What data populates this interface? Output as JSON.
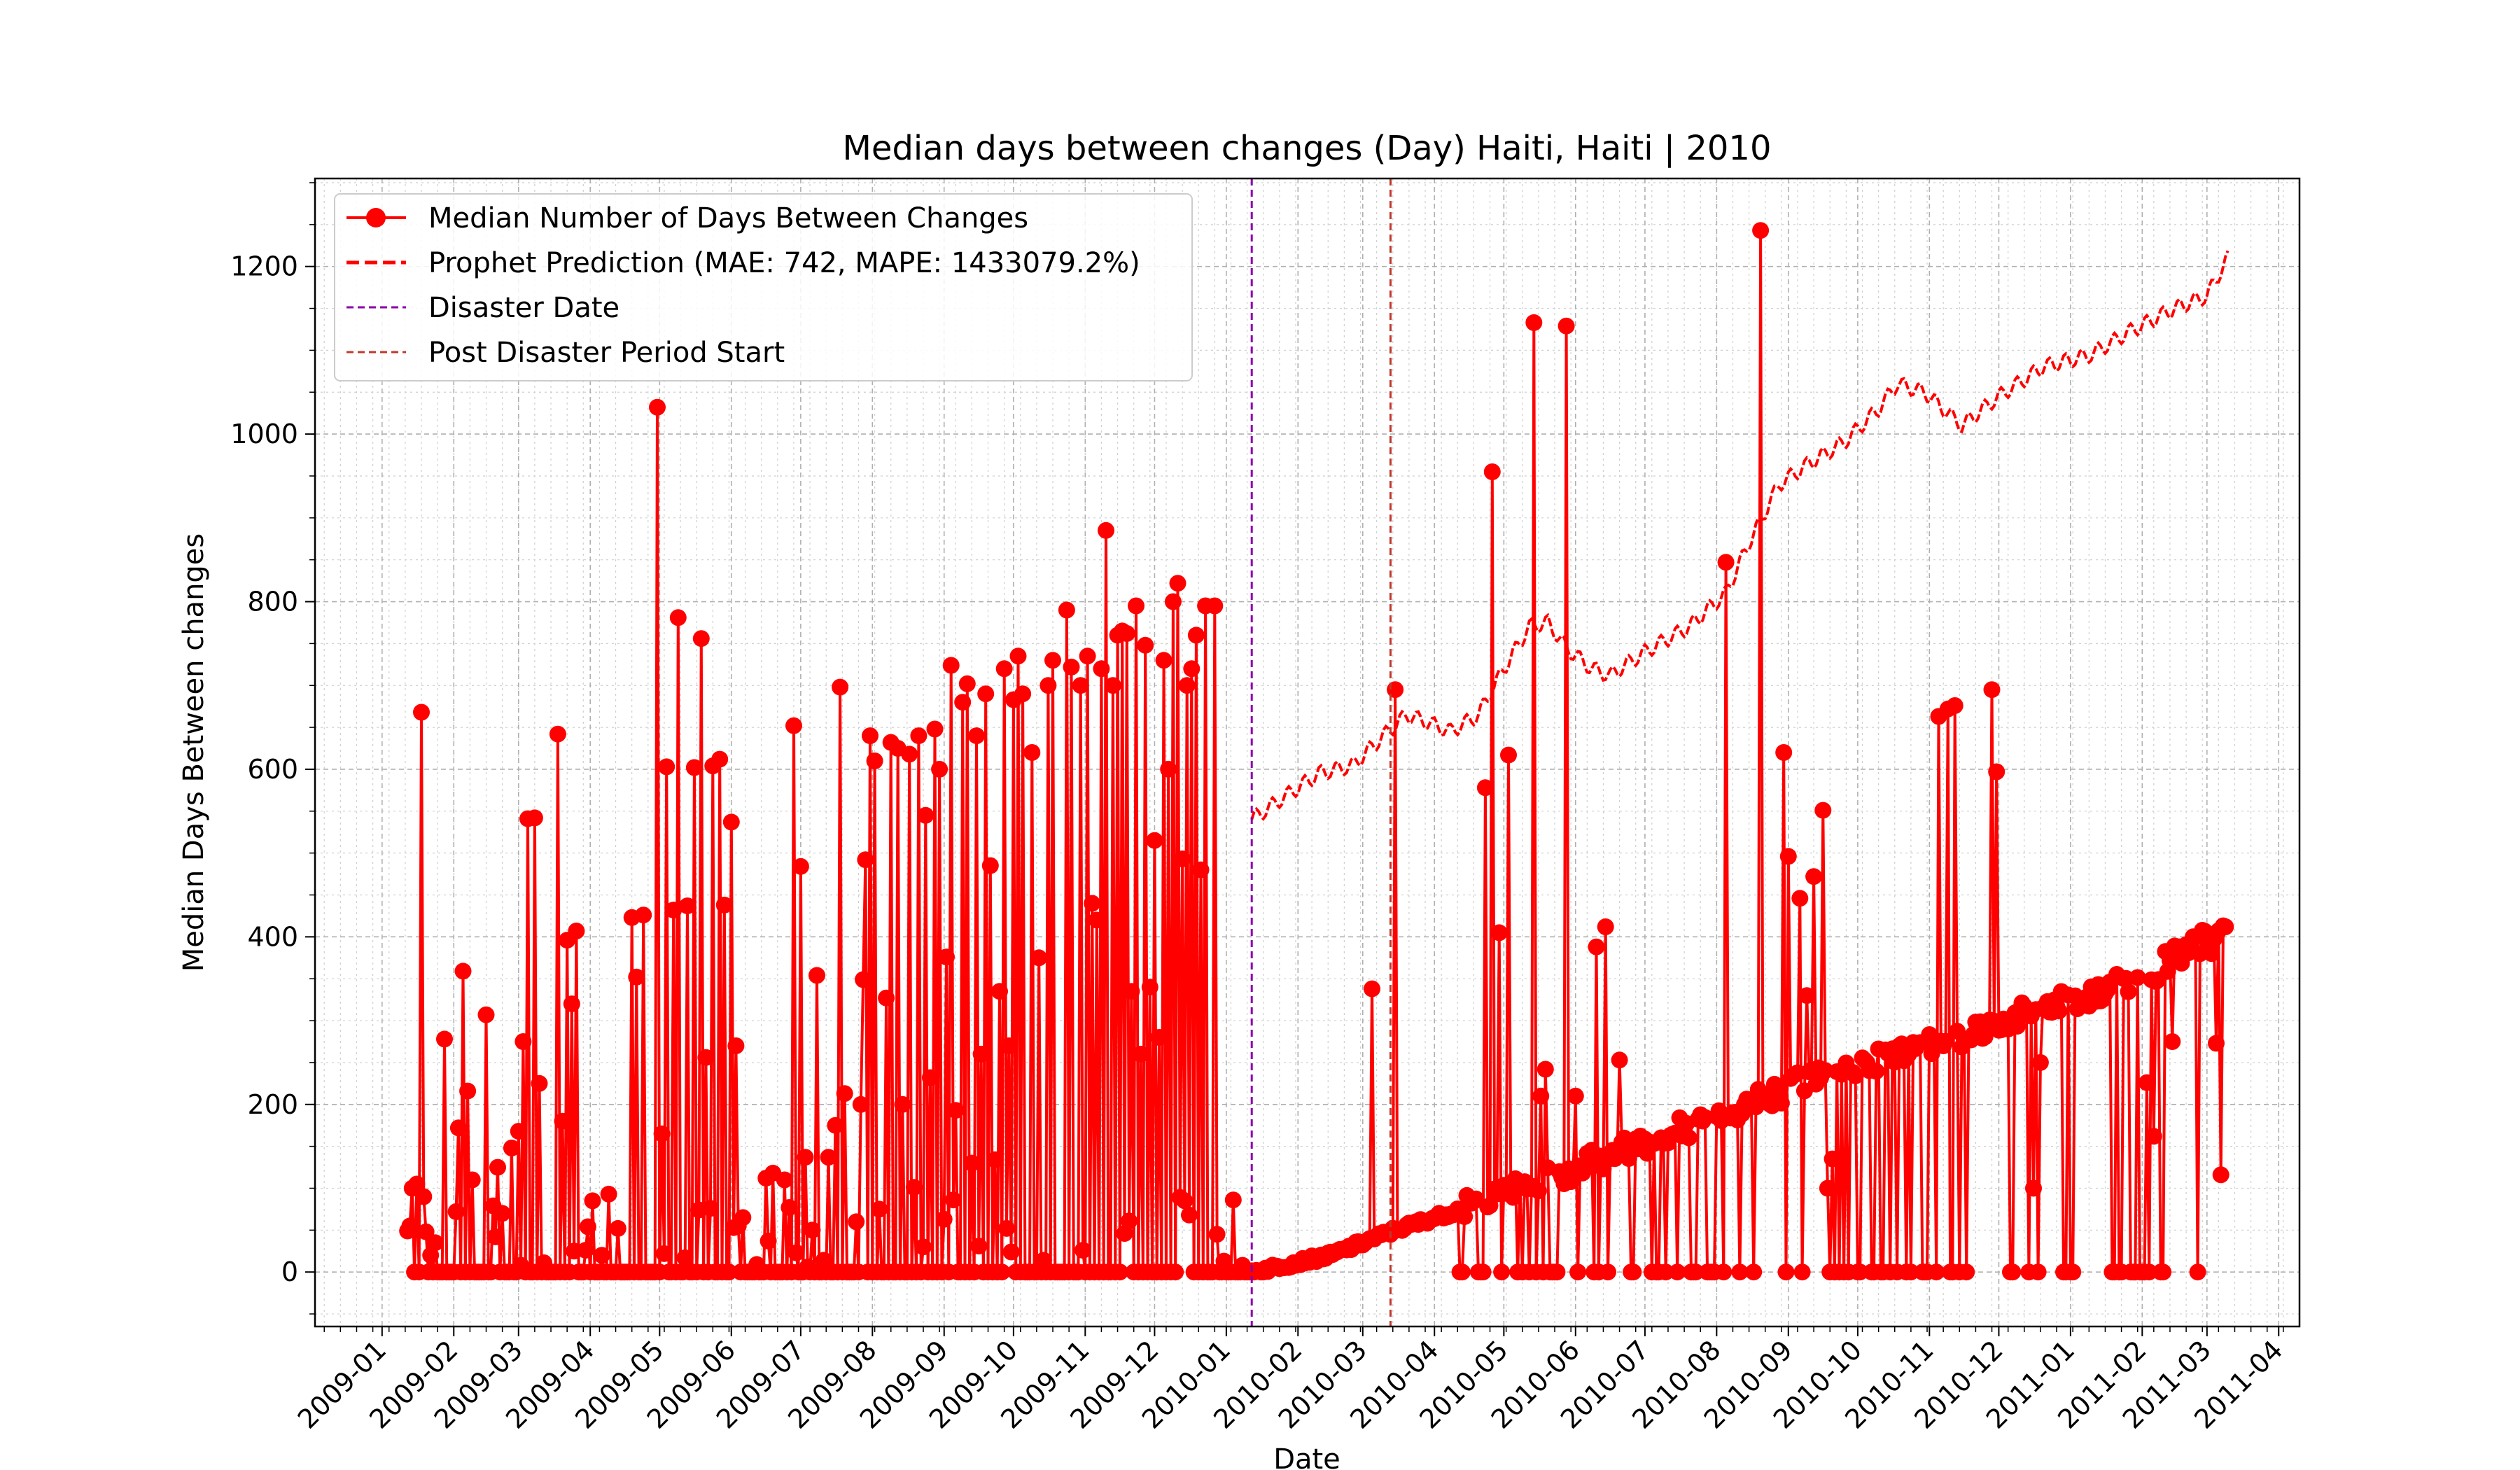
{
  "chart_data": {
    "type": "line",
    "title": "Median days between changes (Day) Haiti, Haiti | 2010",
    "xlabel": "Date",
    "ylabel": "Median Days Between changes",
    "xlim": [
      "2008-12-03",
      "2011-04-10"
    ],
    "ylim": [
      -65,
      1305
    ],
    "x_ticks": [
      "2009-01",
      "2009-02",
      "2009-03",
      "2009-04",
      "2009-05",
      "2009-06",
      "2009-07",
      "2009-08",
      "2009-09",
      "2009-10",
      "2009-11",
      "2009-12",
      "2010-01",
      "2010-02",
      "2010-03",
      "2010-04",
      "2010-05",
      "2010-06",
      "2010-07",
      "2010-08",
      "2010-09",
      "2010-10",
      "2010-11",
      "2010-12",
      "2011-01",
      "2011-02",
      "2011-03",
      "2011-04"
    ],
    "y_ticks": [
      0,
      200,
      400,
      600,
      800,
      1000,
      1200
    ],
    "grid": true,
    "legend_position": "top-left",
    "colors": {
      "observed": "#ff0000",
      "prediction": "#ff0000",
      "disaster": "#8b00a8",
      "post_disaster": "#c0392b"
    },
    "vlines": [
      {
        "name": "Disaster Date",
        "date": "2010-01-12"
      },
      {
        "name": "Post Disaster Period Start",
        "date": "2010-03-13"
      }
    ],
    "series": [
      {
        "name": "Median Number of Days Between Changes",
        "style": "solid-with-markers",
        "peaks": [
          [
            "2009-01-13",
            55
          ],
          [
            "2009-01-14",
            100
          ],
          [
            "2009-01-16",
            105
          ],
          [
            "2009-01-18",
            668
          ],
          [
            "2009-01-20",
            48
          ],
          [
            "2009-01-22",
            20
          ],
          [
            "2009-01-28",
            278
          ],
          [
            "2009-02-03",
            172
          ],
          [
            "2009-02-05",
            359
          ],
          [
            "2009-02-07",
            216
          ],
          [
            "2009-02-09",
            110
          ],
          [
            "2009-02-15",
            307
          ],
          [
            "2009-02-20",
            125
          ],
          [
            "2009-02-22",
            70
          ],
          [
            "2009-02-26",
            148
          ],
          [
            "2009-03-01",
            168
          ],
          [
            "2009-03-03",
            275
          ],
          [
            "2009-03-05",
            541
          ],
          [
            "2009-03-08",
            542
          ],
          [
            "2009-03-10",
            225
          ],
          [
            "2009-03-18",
            642
          ],
          [
            "2009-03-20",
            180
          ],
          [
            "2009-03-22",
            396
          ],
          [
            "2009-03-24",
            320
          ],
          [
            "2009-03-26",
            407
          ],
          [
            "2009-04-02",
            85
          ],
          [
            "2009-04-09",
            93
          ],
          [
            "2009-04-19",
            423
          ],
          [
            "2009-04-21",
            352
          ],
          [
            "2009-04-24",
            426
          ],
          [
            "2009-04-30",
            1032
          ],
          [
            "2009-05-02",
            165
          ],
          [
            "2009-05-04",
            603
          ],
          [
            "2009-05-07",
            432
          ],
          [
            "2009-05-09",
            781
          ],
          [
            "2009-05-13",
            437
          ],
          [
            "2009-05-16",
            602
          ],
          [
            "2009-05-19",
            756
          ],
          [
            "2009-05-21",
            256
          ],
          [
            "2009-05-24",
            604
          ],
          [
            "2009-05-27",
            612
          ],
          [
            "2009-05-29",
            438
          ],
          [
            "2009-06-01",
            537
          ],
          [
            "2009-06-03",
            270
          ],
          [
            "2009-06-06",
            65
          ],
          [
            "2009-06-16",
            112
          ],
          [
            "2009-06-19",
            118
          ],
          [
            "2009-06-24",
            110
          ],
          [
            "2009-06-28",
            652
          ],
          [
            "2009-07-01",
            484
          ],
          [
            "2009-07-03",
            137
          ],
          [
            "2009-07-06",
            50
          ],
          [
            "2009-07-08",
            354
          ],
          [
            "2009-07-13",
            137
          ],
          [
            "2009-07-16",
            175
          ],
          [
            "2009-07-18",
            698
          ],
          [
            "2009-07-20",
            213
          ],
          [
            "2009-07-25",
            60
          ],
          [
            "2009-07-27",
            200
          ],
          [
            "2009-07-28",
            349
          ],
          [
            "2009-07-29",
            492
          ],
          [
            "2009-07-31",
            640
          ],
          [
            "2009-08-02",
            610
          ],
          [
            "2009-08-04",
            75
          ],
          [
            "2009-08-07",
            327
          ],
          [
            "2009-08-09",
            632
          ],
          [
            "2009-08-12",
            625
          ],
          [
            "2009-08-14",
            200
          ],
          [
            "2009-08-17",
            618
          ],
          [
            "2009-08-19",
            101
          ],
          [
            "2009-08-21",
            640
          ],
          [
            "2009-08-23",
            30
          ],
          [
            "2009-08-24",
            545
          ],
          [
            "2009-08-26",
            232
          ],
          [
            "2009-08-28",
            648
          ],
          [
            "2009-08-30",
            600
          ],
          [
            "2009-09-02",
            376
          ],
          [
            "2009-09-04",
            724
          ],
          [
            "2009-09-06",
            193
          ],
          [
            "2009-09-09",
            680
          ],
          [
            "2009-09-11",
            702
          ],
          [
            "2009-09-13",
            130
          ],
          [
            "2009-09-15",
            640
          ],
          [
            "2009-09-17",
            260
          ],
          [
            "2009-09-19",
            690
          ],
          [
            "2009-09-21",
            485
          ],
          [
            "2009-09-23",
            134
          ],
          [
            "2009-09-25",
            335
          ],
          [
            "2009-09-27",
            720
          ],
          [
            "2009-09-29",
            270
          ],
          [
            "2009-10-01",
            683
          ],
          [
            "2009-10-03",
            735
          ],
          [
            "2009-10-05",
            690
          ],
          [
            "2009-10-09",
            620
          ],
          [
            "2009-10-12",
            375
          ],
          [
            "2009-10-16",
            700
          ],
          [
            "2009-10-18",
            730
          ],
          [
            "2009-10-24",
            790
          ],
          [
            "2009-10-26",
            722
          ],
          [
            "2009-10-30",
            700
          ],
          [
            "2009-11-02",
            735
          ],
          [
            "2009-11-04",
            440
          ],
          [
            "2009-11-06",
            420
          ],
          [
            "2009-11-08",
            720
          ],
          [
            "2009-11-10",
            885
          ],
          [
            "2009-11-13",
            700
          ],
          [
            "2009-11-15",
            760
          ],
          [
            "2009-11-17",
            765
          ],
          [
            "2009-11-19",
            762
          ],
          [
            "2009-11-21",
            335
          ],
          [
            "2009-11-23",
            795
          ],
          [
            "2009-11-25",
            260
          ],
          [
            "2009-11-27",
            748
          ],
          [
            "2009-11-29",
            340
          ],
          [
            "2009-12-01",
            515
          ],
          [
            "2009-12-03",
            280
          ],
          [
            "2009-12-05",
            730
          ],
          [
            "2009-12-07",
            600
          ],
          [
            "2009-12-09",
            800
          ],
          [
            "2009-12-11",
            822
          ],
          [
            "2009-12-13",
            493
          ],
          [
            "2009-12-15",
            700
          ],
          [
            "2009-12-17",
            720
          ],
          [
            "2009-12-19",
            760
          ],
          [
            "2009-12-21",
            480
          ],
          [
            "2009-12-23",
            795
          ],
          [
            "2009-12-27",
            795
          ],
          [
            "2010-03-05",
            338
          ],
          [
            "2010-03-15",
            695
          ],
          [
            "2010-04-23",
            578
          ],
          [
            "2010-04-26",
            955
          ],
          [
            "2010-04-29",
            405
          ],
          [
            "2010-05-03",
            617
          ],
          [
            "2010-05-14",
            1133
          ],
          [
            "2010-05-17",
            210
          ],
          [
            "2010-05-19",
            242
          ],
          [
            "2010-05-28",
            1129
          ],
          [
            "2010-06-01",
            210
          ],
          [
            "2010-06-10",
            388
          ],
          [
            "2010-06-14",
            412
          ],
          [
            "2010-06-20",
            253
          ],
          [
            "2010-08-05",
            847
          ],
          [
            "2010-08-20",
            1243
          ],
          [
            "2010-08-30",
            620
          ],
          [
            "2010-09-01",
            496
          ],
          [
            "2010-09-06",
            446
          ],
          [
            "2010-09-09",
            330
          ],
          [
            "2010-09-12",
            472
          ],
          [
            "2010-09-16",
            551
          ],
          [
            "2010-09-18",
            100
          ],
          [
            "2010-09-20",
            135
          ],
          [
            "2010-11-05",
            663
          ],
          [
            "2010-11-09",
            672
          ],
          [
            "2010-11-12",
            676
          ],
          [
            "2010-11-28",
            695
          ],
          [
            "2010-11-30",
            597
          ],
          [
            "2010-12-05",
            290
          ],
          [
            "2010-12-16",
            100
          ],
          [
            "2010-12-19",
            250
          ],
          [
            "2011-02-03",
            226
          ],
          [
            "2011-02-06",
            162
          ],
          [
            "2011-02-14",
            275
          ],
          [
            "2011-03-01",
            397
          ],
          [
            "2011-03-03",
            380
          ],
          [
            "2011-03-05",
            273
          ],
          [
            "2011-03-07",
            116
          ],
          [
            "2011-03-09",
            412
          ]
        ],
        "trend": [
          [
            "2010-01-12",
            0
          ],
          [
            "2010-02-15",
            20
          ],
          [
            "2010-03-15",
            50
          ],
          [
            "2010-04-30",
            90
          ],
          [
            "2010-06-15",
            140
          ],
          [
            "2010-07-31",
            185
          ],
          [
            "2010-09-15",
            235
          ],
          [
            "2010-10-31",
            270
          ],
          [
            "2010-12-15",
            310
          ],
          [
            "2011-01-31",
            350
          ],
          [
            "2011-03-09",
            410
          ]
        ]
      },
      {
        "name": "Prophet Prediction (MAE: 742, MAPE: 1433079.2%)",
        "style": "dashed",
        "points": [
          [
            "2010-01-12",
            540
          ],
          [
            "2010-01-25",
            565
          ],
          [
            "2010-02-10",
            595
          ],
          [
            "2010-02-25",
            605
          ],
          [
            "2010-03-10",
            640
          ],
          [
            "2010-03-20",
            665
          ],
          [
            "2010-03-30",
            655
          ],
          [
            "2010-04-08",
            645
          ],
          [
            "2010-04-20",
            665
          ],
          [
            "2010-05-01",
            720
          ],
          [
            "2010-05-12",
            770
          ],
          [
            "2010-05-20",
            775
          ],
          [
            "2010-05-28",
            745
          ],
          [
            "2010-06-08",
            720
          ],
          [
            "2010-06-16",
            712
          ],
          [
            "2010-07-01",
            740
          ],
          [
            "2010-07-20",
            770
          ],
          [
            "2010-08-05",
            810
          ],
          [
            "2010-08-15",
            870
          ],
          [
            "2010-08-28",
            940
          ],
          [
            "2010-09-10",
            965
          ],
          [
            "2010-09-25",
            990
          ],
          [
            "2010-10-10",
            1030
          ],
          [
            "2010-10-18",
            1060
          ],
          [
            "2010-10-30",
            1050
          ],
          [
            "2010-11-15",
            1010
          ],
          [
            "2010-12-01",
            1045
          ],
          [
            "2010-12-20",
            1080
          ],
          [
            "2011-01-10",
            1095
          ],
          [
            "2011-01-25",
            1120
          ],
          [
            "2011-02-15",
            1150
          ],
          [
            "2011-03-01",
            1165
          ],
          [
            "2011-03-10",
            1210
          ]
        ]
      },
      {
        "name": "Disaster Date",
        "style": "dashed-vline"
      },
      {
        "name": "Post Disaster Period Start",
        "style": "dashed-vline"
      }
    ]
  }
}
